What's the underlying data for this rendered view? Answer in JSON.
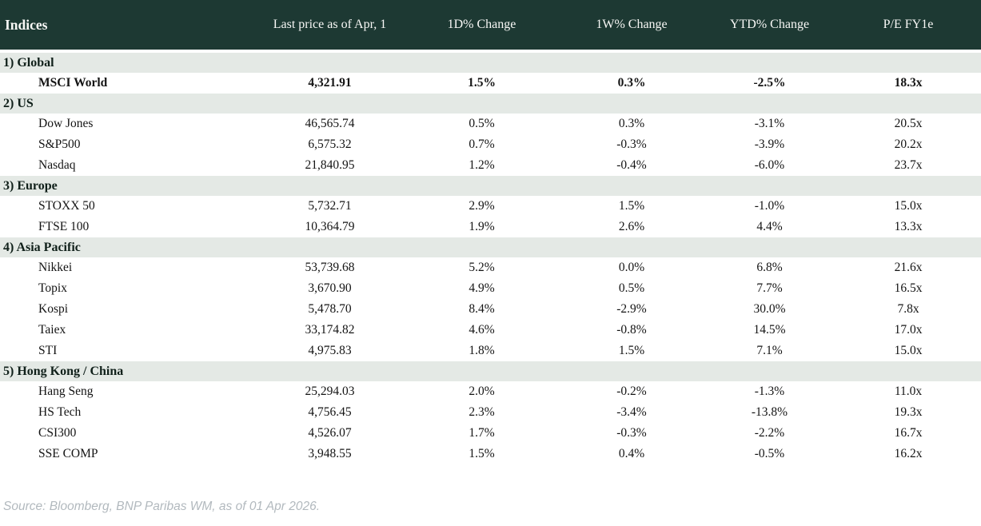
{
  "chart_data": {
    "type": "table",
    "title": "Indices",
    "columns": [
      "Indices",
      "Last price as of Apr, 1",
      "1D% Change",
      "1W% Change",
      "YTD% Change",
      "P/E FY1e"
    ],
    "sections": [
      {
        "label": "1) Global",
        "rows": [
          {
            "name": "MSCI World",
            "bold": true,
            "values": [
              "4,321.91",
              "1.5%",
              "0.3%",
              "-2.5%",
              "18.3x"
            ],
            "value_colors": [
              null,
              "green",
              "green",
              "red",
              null
            ]
          }
        ]
      },
      {
        "label": "2) US",
        "rows": [
          {
            "name": "Dow Jones",
            "bold": false,
            "values": [
              "46,565.74",
              "0.5%",
              "0.3%",
              "-3.1%",
              "20.5x"
            ],
            "value_colors": [
              null,
              "green",
              "green",
              "red",
              null
            ]
          },
          {
            "name": "S&P500",
            "bold": false,
            "values": [
              "6,575.32",
              "0.7%",
              "-0.3%",
              "-3.9%",
              "20.2x"
            ],
            "value_colors": [
              null,
              "green",
              "red",
              "red",
              null
            ]
          },
          {
            "name": "Nasdaq",
            "bold": false,
            "values": [
              "21,840.95",
              "1.2%",
              "-0.4%",
              "-6.0%",
              "23.7x"
            ],
            "value_colors": [
              null,
              "green",
              "red",
              "red",
              null
            ]
          }
        ]
      },
      {
        "label": "3) Europe",
        "rows": [
          {
            "name": "STOXX 50",
            "bold": false,
            "values": [
              "5,732.71",
              "2.9%",
              "1.5%",
              "-1.0%",
              "15.0x"
            ],
            "value_colors": [
              null,
              "green",
              "green",
              "red",
              null
            ]
          },
          {
            "name": "FTSE 100",
            "bold": false,
            "values": [
              "10,364.79",
              "1.9%",
              "2.6%",
              "4.4%",
              "13.3x"
            ],
            "value_colors": [
              null,
              "green",
              "green",
              "green",
              null
            ]
          }
        ]
      },
      {
        "label": "4) Asia Pacific",
        "rows": [
          {
            "name": "Nikkei",
            "bold": false,
            "values": [
              "53,739.68",
              "5.2%",
              "0.0%",
              "6.8%",
              "21.6x"
            ],
            "value_colors": [
              null,
              "green",
              "red",
              "green",
              null
            ]
          },
          {
            "name": "Topix",
            "bold": false,
            "values": [
              "3,670.90",
              "4.9%",
              "0.5%",
              "7.7%",
              "16.5x"
            ],
            "value_colors": [
              null,
              "green",
              "green",
              "green",
              null
            ]
          },
          {
            "name": "Kospi",
            "bold": false,
            "values": [
              "5,478.70",
              "8.4%",
              "-2.9%",
              "30.0%",
              "7.8x"
            ],
            "value_colors": [
              null,
              "green",
              "red",
              "green",
              null
            ]
          },
          {
            "name": "Taiex",
            "bold": false,
            "values": [
              "33,174.82",
              "4.6%",
              "-0.8%",
              "14.5%",
              "17.0x"
            ],
            "value_colors": [
              null,
              "green",
              "red",
              "green",
              null
            ]
          },
          {
            "name": "STI",
            "bold": false,
            "values": [
              "4,975.83",
              "1.8%",
              "1.5%",
              "7.1%",
              "15.0x"
            ],
            "value_colors": [
              null,
              "green",
              "green",
              "green",
              null
            ]
          }
        ]
      },
      {
        "label": "5) Hong Kong / China",
        "rows": [
          {
            "name": "Hang Seng",
            "bold": false,
            "values": [
              "25,294.03",
              "2.0%",
              "-0.2%",
              "-1.3%",
              "11.0x"
            ],
            "value_colors": [
              null,
              "green",
              "red",
              "red",
              null
            ]
          },
          {
            "name": "HS Tech",
            "bold": false,
            "values": [
              "4,756.45",
              "2.3%",
              "-3.4%",
              "-13.8%",
              "19.3x"
            ],
            "value_colors": [
              null,
              "green",
              "red",
              "red",
              null
            ]
          },
          {
            "name": "CSI300",
            "bold": false,
            "values": [
              "4,526.07",
              "1.7%",
              "-0.3%",
              "-2.2%",
              "16.7x"
            ],
            "value_colors": [
              null,
              "green",
              "red",
              "red",
              null
            ]
          },
          {
            "name": "SSE COMP",
            "bold": false,
            "values": [
              "3,948.55",
              "1.5%",
              "0.4%",
              "-0.5%",
              "16.2x"
            ],
            "value_colors": [
              null,
              "green",
              "green",
              "red",
              null
            ]
          }
        ]
      }
    ]
  },
  "footer": {
    "source": "Source: Bloomberg, BNP Paribas WM, as of 01 Apr 2026."
  },
  "colors": {
    "header_background": "#1d3933",
    "header_text": "#f8f8f6",
    "section_background": "#e4e9e5",
    "positive": "#008a23",
    "negative": "#c00017",
    "source_text": "#b2b9be"
  }
}
